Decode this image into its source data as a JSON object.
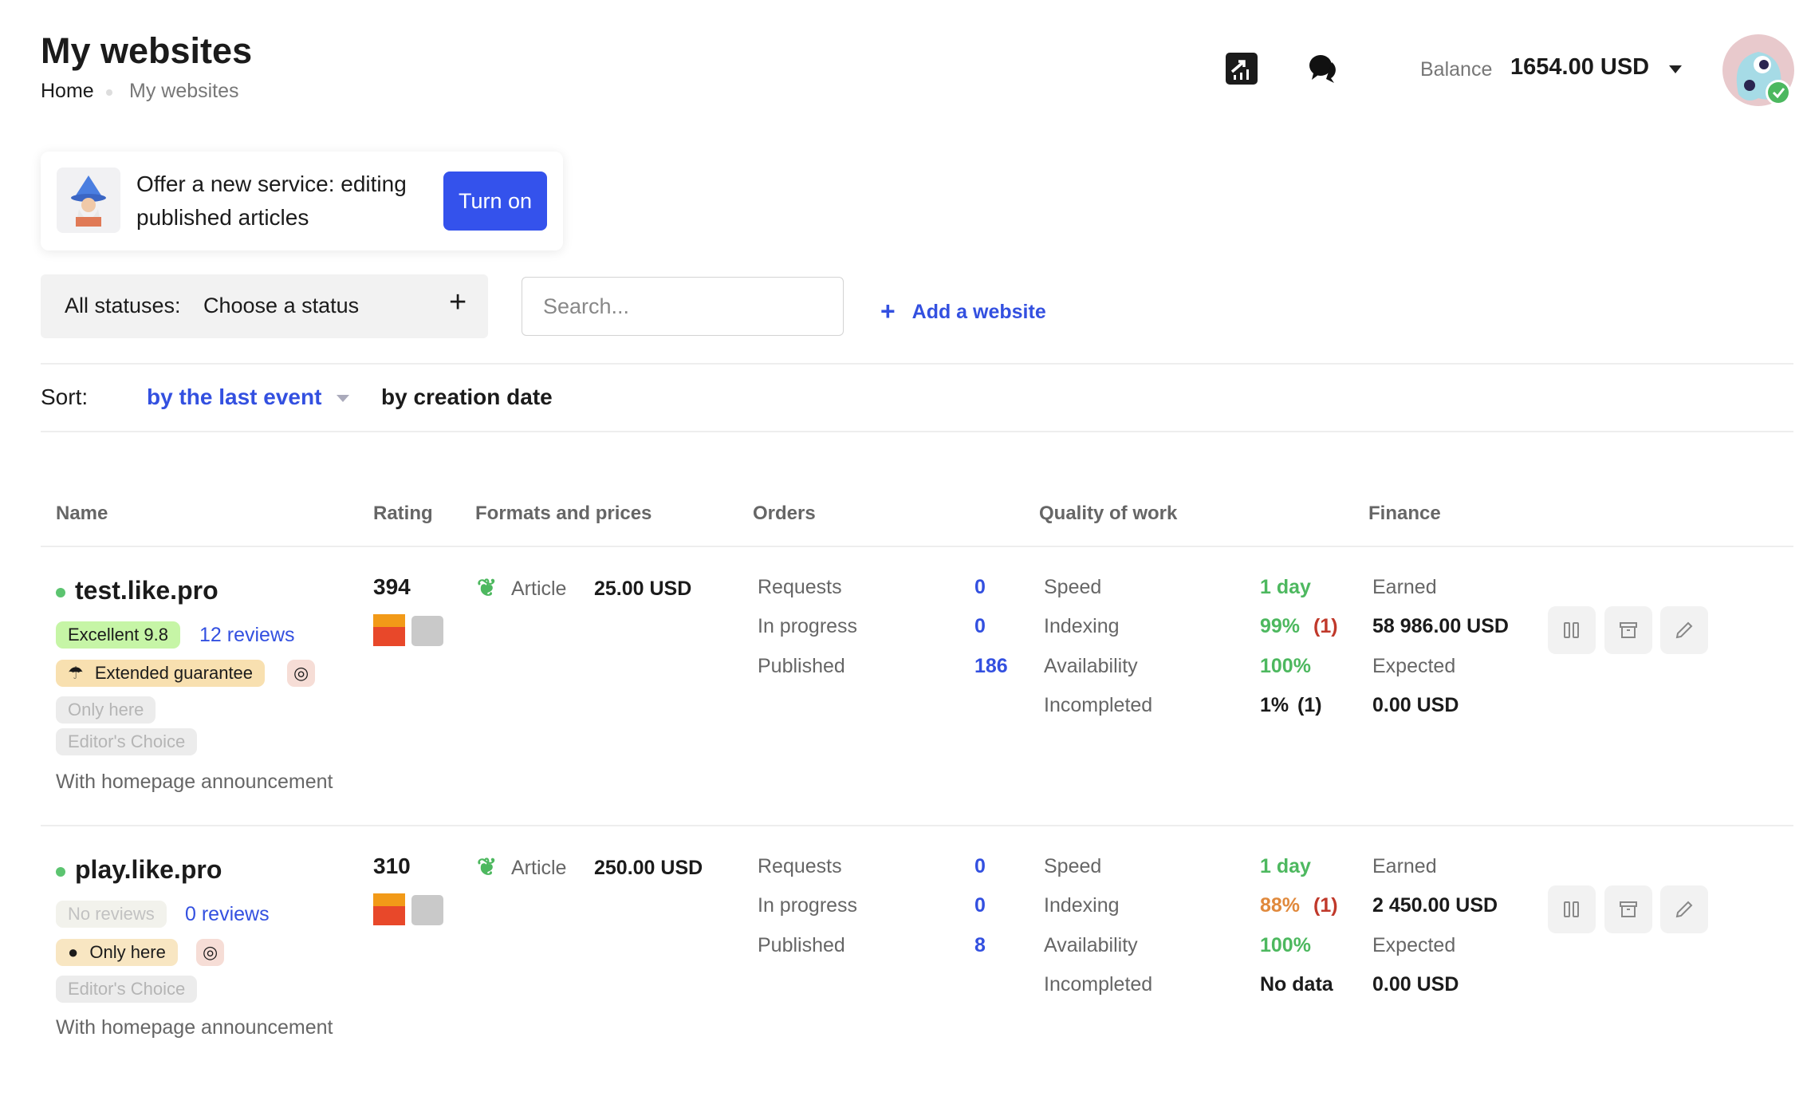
{
  "header": {
    "title": "My websites",
    "breadcrumb": [
      "Home",
      "My websites"
    ],
    "balance_label": "Balance",
    "balance_value": "1654.00 USD"
  },
  "promo": {
    "text": "Offer a new service: editing published articles",
    "button": "Turn on"
  },
  "filters": {
    "status_label": "All statuses:",
    "status_value": "Choose a status",
    "search_placeholder": "Search...",
    "add_website": "Add a website"
  },
  "sort": {
    "label": "Sort:",
    "options": [
      "by the last event",
      "by creation date"
    ],
    "active": "by the last event"
  },
  "table": {
    "columns": [
      "Name",
      "Rating",
      "Formats and prices",
      "Orders",
      "Quality of work",
      "Finance"
    ],
    "rows": [
      {
        "name": "test.like.pro",
        "status_color": "#5cc470",
        "rating_badge": "Excellent 9.8",
        "reviews": "12 reviews",
        "guarantee": "Extended guarantee",
        "only_here": "Only here",
        "editors_choice": "Editor's Choice",
        "announcement": "With homepage announcement",
        "rating": "394",
        "format": "Article",
        "price": "25.00 USD",
        "orders": [
          {
            "label": "Requests",
            "value": "0"
          },
          {
            "label": "In progress",
            "value": "0"
          },
          {
            "label": "Published",
            "value": "186"
          }
        ],
        "quality": [
          {
            "label": "Speed",
            "value": "1 day",
            "extra": ""
          },
          {
            "label": "Indexing",
            "value": "99%",
            "extra": "(1)"
          },
          {
            "label": "Availability",
            "value": "100%",
            "extra": ""
          },
          {
            "label": "Incompleted",
            "value": "1%",
            "extra": "(1)"
          }
        ],
        "finance": {
          "earned_label": "Earned",
          "earned": "58 986.00 USD",
          "expected_label": "Expected",
          "expected": "0.00 USD"
        }
      },
      {
        "name": "play.like.pro",
        "status_color": "#5cc470",
        "rating_badge": "No reviews",
        "reviews": "0 reviews",
        "only_here": "Only here",
        "editors_choice": "Editor's Choice",
        "announcement": "With homepage announcement",
        "rating": "310",
        "format": "Article",
        "price": "250.00 USD",
        "orders": [
          {
            "label": "Requests",
            "value": "0"
          },
          {
            "label": "In progress",
            "value": "0"
          },
          {
            "label": "Published",
            "value": "8"
          }
        ],
        "quality": [
          {
            "label": "Speed",
            "value": "1 day",
            "extra": ""
          },
          {
            "label": "Indexing",
            "value": "88%",
            "extra": "(1)"
          },
          {
            "label": "Availability",
            "value": "100%",
            "extra": ""
          },
          {
            "label": "Incompleted",
            "value": "No data",
            "extra": ""
          }
        ],
        "finance": {
          "earned_label": "Earned",
          "earned": "2 450.00 USD",
          "expected_label": "Expected",
          "expected": "0.00 USD"
        }
      }
    ]
  }
}
